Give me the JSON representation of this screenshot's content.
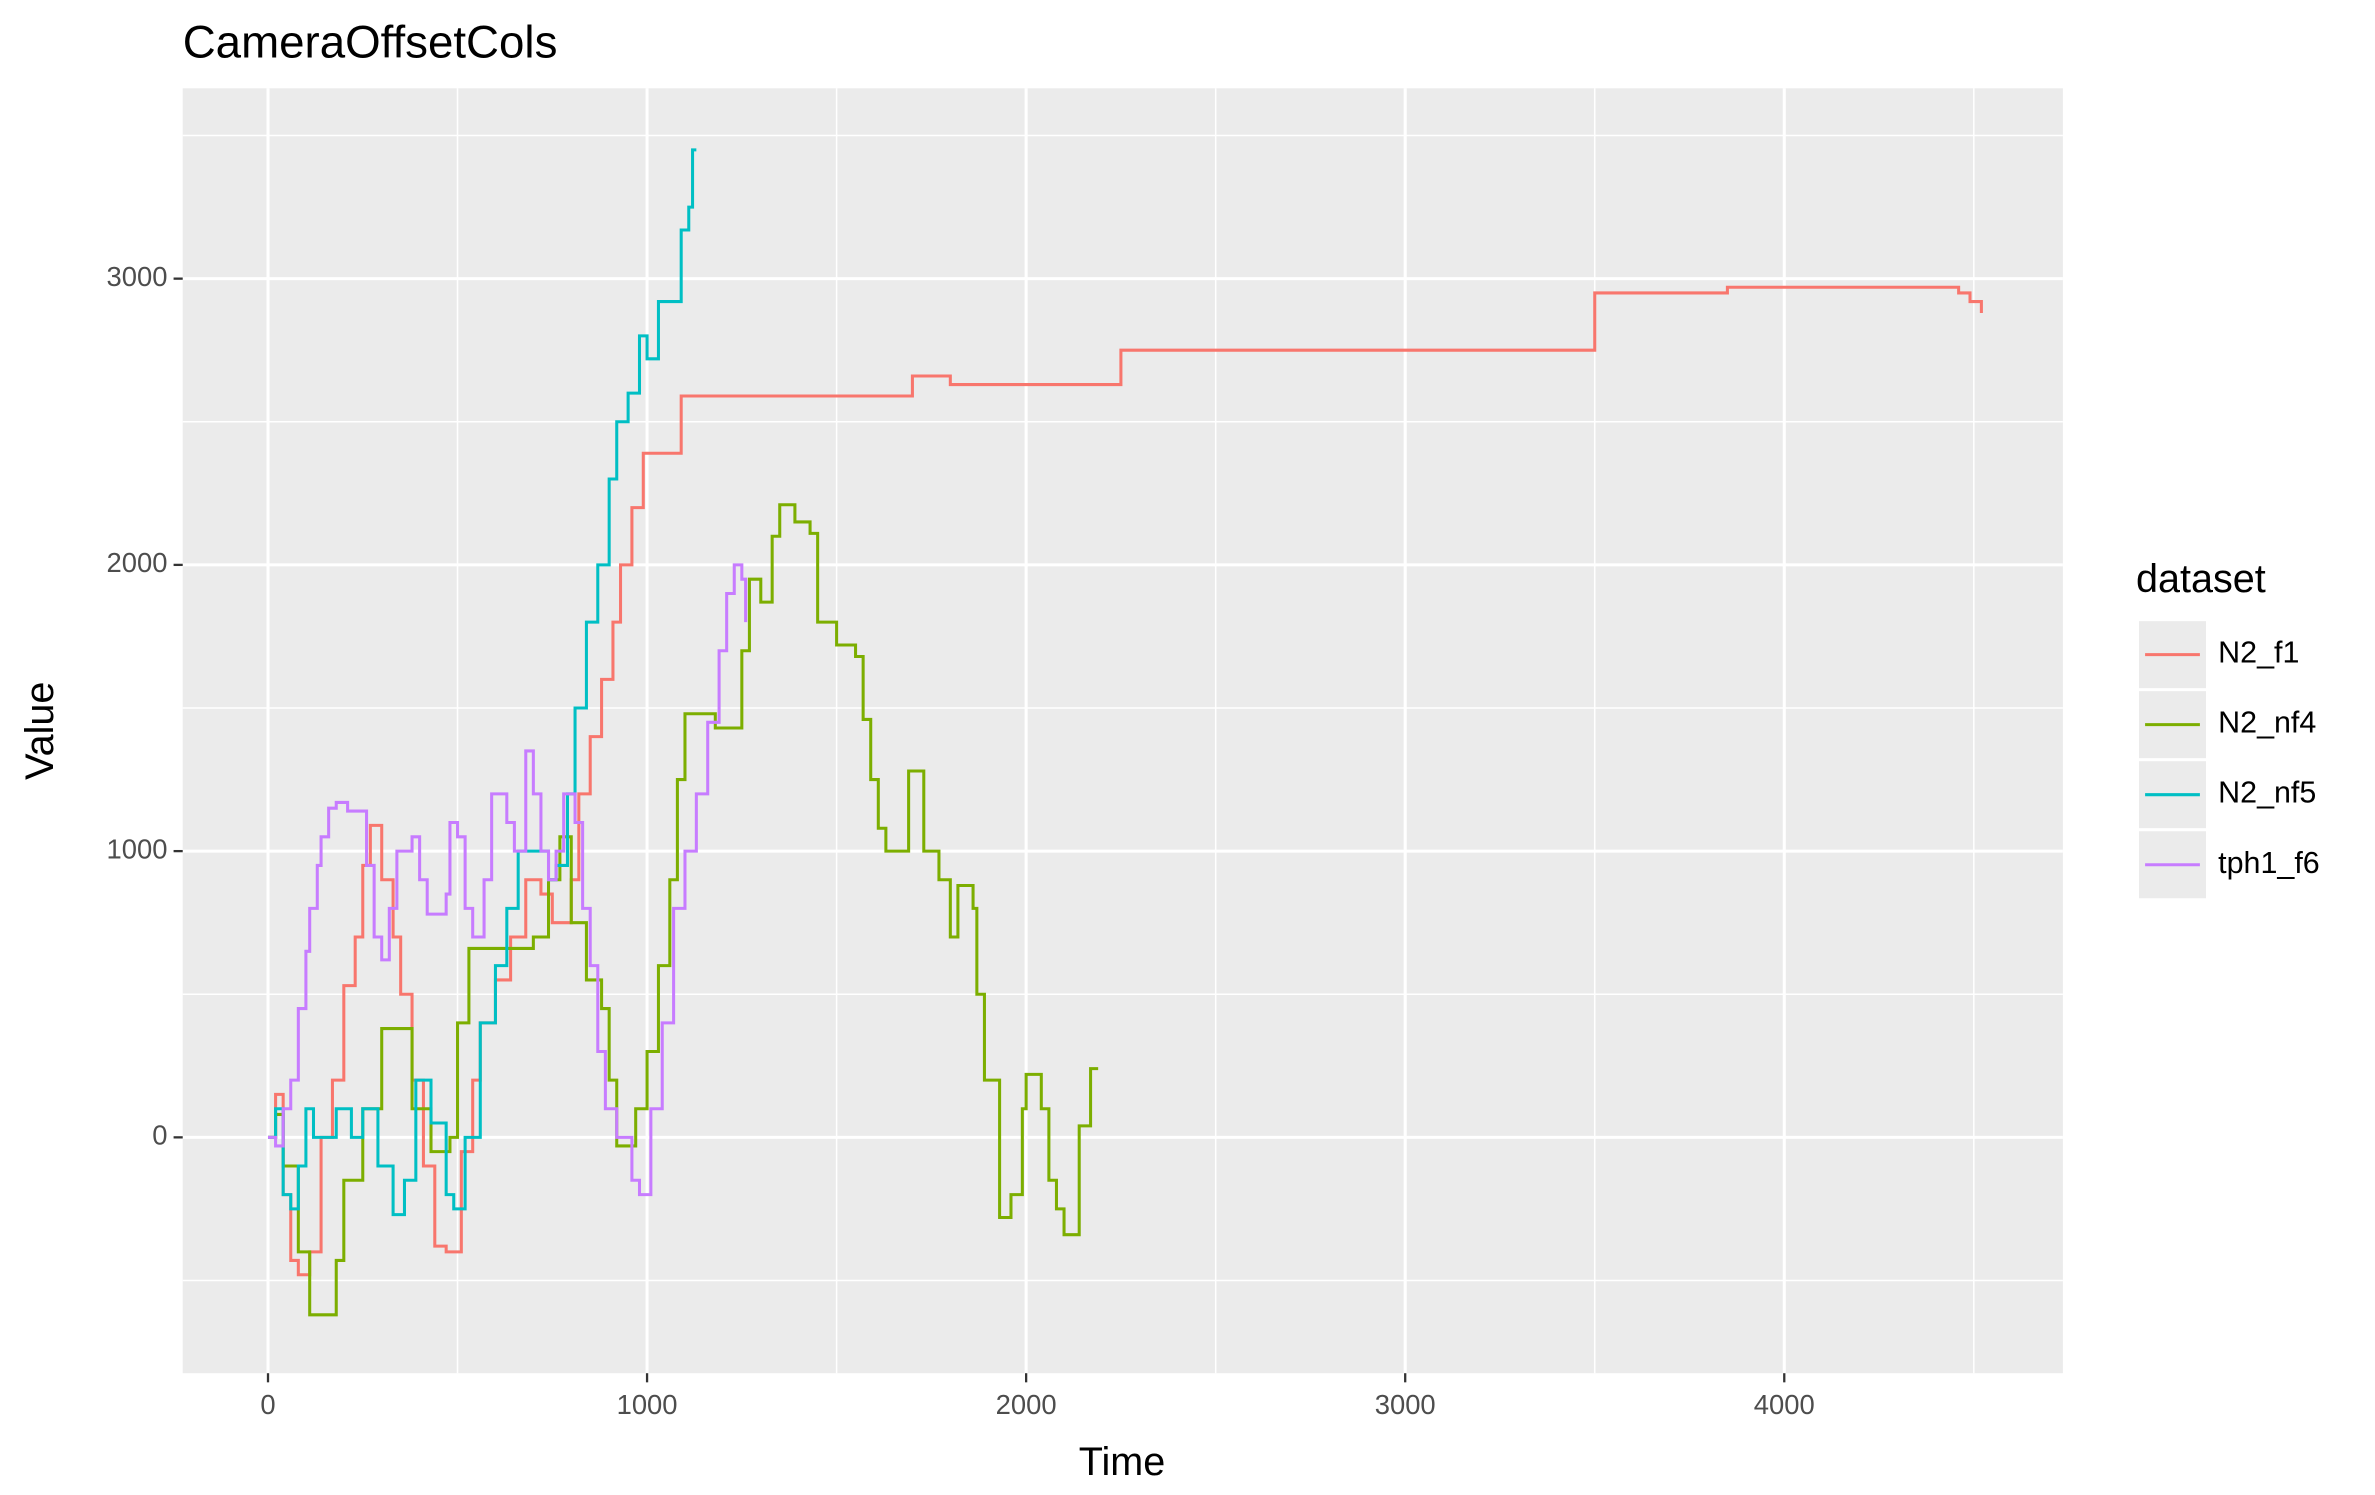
{
  "chart_data": {
    "type": "step",
    "title": "CameraOffsetCols",
    "x_label": "Time",
    "y_label": "Value",
    "legend_title": "dataset",
    "legend": "right",
    "grid": true,
    "xlim": [
      -225,
      4735
    ],
    "ylim": [
      -824,
      3665
    ],
    "xticks": [
      0,
      1000,
      2000,
      3000,
      4000
    ],
    "yticks": [
      0,
      1000,
      2000,
      3000
    ],
    "x_minor_ticks": [
      500,
      1500,
      2500,
      3500,
      4500
    ],
    "y_minor_ticks": [
      -500,
      500,
      1500,
      2500,
      3500
    ],
    "series": [
      {
        "name": "N2_f1",
        "color": "#F8766D",
        "x": [
          0,
          20,
          40,
          60,
          80,
          110,
          140,
          170,
          200,
          230,
          250,
          270,
          300,
          330,
          350,
          380,
          410,
          440,
          470,
          510,
          540,
          560,
          600,
          640,
          680,
          720,
          750,
          800,
          820,
          850,
          880,
          910,
          930,
          960,
          990,
          1010,
          1090,
          1700,
          1800,
          2250,
          3500,
          3850,
          4460,
          4490,
          4520
        ],
        "values": [
          0,
          150,
          -200,
          -430,
          -480,
          -400,
          0,
          200,
          530,
          700,
          950,
          1090,
          900,
          700,
          500,
          200,
          -100,
          -380,
          -400,
          -50,
          200,
          400,
          550,
          700,
          900,
          850,
          750,
          900,
          1200,
          1400,
          1600,
          1800,
          2000,
          2200,
          2390,
          2390,
          2590,
          2660,
          2630,
          2750,
          2950,
          2970,
          2950,
          2920,
          2880
        ]
      },
      {
        "name": "N2_nf4",
        "color": "#7CAE00",
        "x": [
          0,
          20,
          40,
          80,
          110,
          180,
          200,
          250,
          300,
          360,
          380,
          430,
          480,
          500,
          530,
          700,
          740,
          770,
          800,
          840,
          880,
          900,
          920,
          960,
          970,
          1000,
          1030,
          1060,
          1080,
          1100,
          1180,
          1250,
          1270,
          1300,
          1330,
          1350,
          1390,
          1430,
          1450,
          1500,
          1550,
          1570,
          1590,
          1610,
          1630,
          1690,
          1730,
          1770,
          1800,
          1820,
          1860,
          1870,
          1890,
          1930,
          1960,
          1990,
          2000,
          2040,
          2060,
          2080,
          2100,
          2140,
          2170,
          2190
        ],
        "values": [
          0,
          80,
          -100,
          -400,
          -620,
          -430,
          -150,
          100,
          380,
          380,
          100,
          -50,
          0,
          400,
          660,
          700,
          900,
          1050,
          750,
          550,
          450,
          200,
          -30,
          -30,
          100,
          300,
          600,
          900,
          1250,
          1480,
          1430,
          1700,
          1950,
          1870,
          2100,
          2210,
          2150,
          2110,
          1800,
          1720,
          1680,
          1460,
          1250,
          1080,
          1000,
          1280,
          1000,
          900,
          700,
          880,
          800,
          500,
          200,
          -280,
          -200,
          100,
          220,
          100,
          -150,
          -250,
          -340,
          40,
          240,
          240
        ]
      },
      {
        "name": "N2_nf5",
        "color": "#00BFC4",
        "x": [
          0,
          20,
          40,
          60,
          80,
          100,
          120,
          180,
          220,
          250,
          290,
          330,
          360,
          390,
          430,
          470,
          490,
          520,
          560,
          600,
          630,
          660,
          740,
          760,
          790,
          810,
          840,
          870,
          900,
          920,
          950,
          980,
          1000,
          1030,
          1090,
          1110,
          1120,
          1130
        ],
        "values": [
          0,
          100,
          -200,
          -250,
          -100,
          100,
          0,
          100,
          0,
          100,
          -100,
          -270,
          -150,
          200,
          50,
          -200,
          -250,
          0,
          400,
          600,
          800,
          1000,
          900,
          950,
          1200,
          1500,
          1800,
          2000,
          2300,
          2500,
          2600,
          2800,
          2720,
          2920,
          3170,
          3250,
          3450,
          3450
        ]
      },
      {
        "name": "tph1_f6",
        "color": "#C77CFF",
        "x": [
          0,
          20,
          40,
          60,
          80,
          100,
          110,
          130,
          140,
          160,
          180,
          210,
          260,
          280,
          300,
          320,
          340,
          380,
          400,
          420,
          470,
          480,
          500,
          520,
          540,
          570,
          590,
          630,
          650,
          680,
          700,
          720,
          740,
          760,
          780,
          810,
          830,
          850,
          870,
          890,
          920,
          960,
          980,
          1010,
          1040,
          1070,
          1100,
          1130,
          1160,
          1190,
          1210,
          1230,
          1250,
          1260
        ],
        "values": [
          0,
          -30,
          100,
          200,
          450,
          650,
          800,
          950,
          1050,
          1150,
          1170,
          1140,
          950,
          700,
          620,
          800,
          1000,
          1050,
          900,
          780,
          850,
          1100,
          1050,
          800,
          700,
          900,
          1200,
          1100,
          1000,
          1350,
          1200,
          1000,
          900,
          1000,
          1200,
          1100,
          800,
          600,
          300,
          100,
          0,
          -150,
          -200,
          100,
          400,
          800,
          1000,
          1200,
          1450,
          1700,
          1900,
          2000,
          1950,
          1800
        ]
      }
    ]
  }
}
